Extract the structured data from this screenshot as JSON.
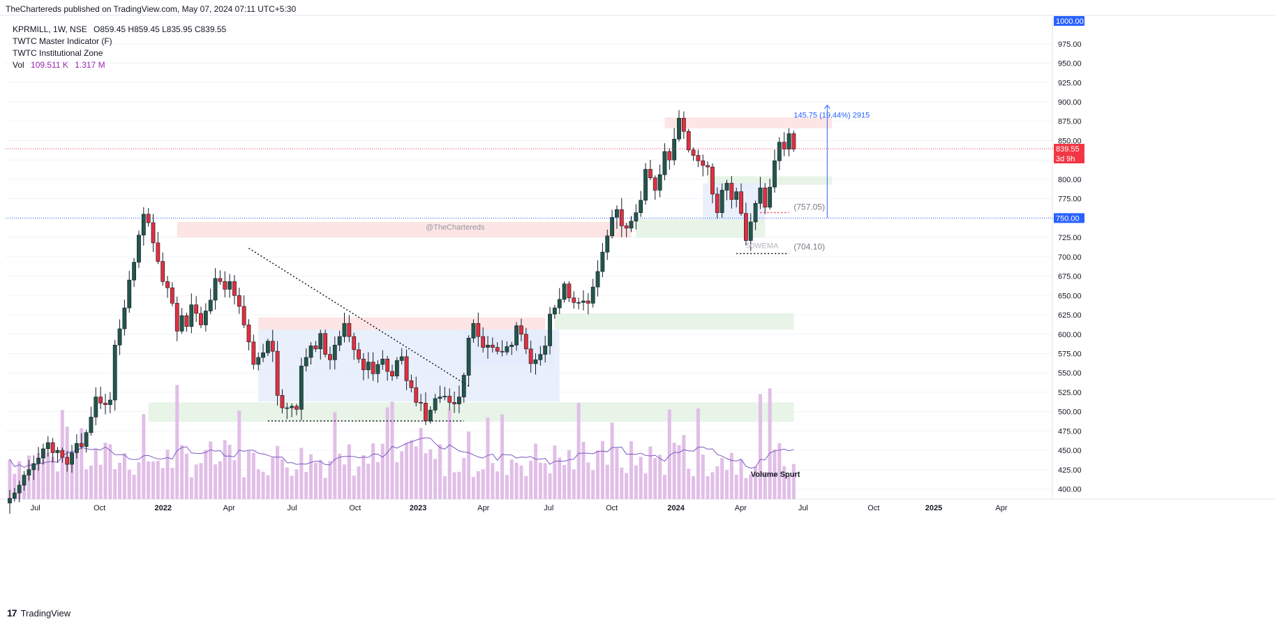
{
  "header": {
    "published": "TheChartereds published on TradingView.com, May 07, 2024 07:11 UTC+5:30"
  },
  "legend": {
    "symbol_line": "KPRMILL, 1W, NSE",
    "ohlc": "O859.45  H859.45  L835.95  C839.55",
    "indicator1": "TWTC Master Indicator (F)",
    "indicator2": "TWTC Institutional Zone",
    "vol_label": "Vol",
    "vol_value1": "109.511 K",
    "vol_value2": "1.317 M"
  },
  "watermark": "@TheChartereds",
  "annotations": {
    "measure": "145.75 (19.44%) 2915",
    "level_757": "(757.05)",
    "level_704": "(704.10)",
    "ema": "50WEMA",
    "volume_spurt": "Volume Spurt"
  },
  "price_badges": {
    "top": "1000.00",
    "current": "839.55",
    "countdown": "3d 9h",
    "line750": "750.00"
  },
  "footer": {
    "brand": "TradingView",
    "logo": "17"
  },
  "colors": {
    "up": "#22574b",
    "down": "#e0303e",
    "volume": "#e1bee7",
    "ma": "#7e57c2",
    "red_zone": "#fde0e0",
    "green_zone": "#e3f2e3",
    "blue_zone": "#e3ecfb",
    "badge_blue": "#2962ff",
    "badge_red": "#f23645"
  },
  "chart_data": {
    "type": "candlestick",
    "symbol": "KPRMILL",
    "interval": "1W",
    "exchange": "NSE",
    "y_axis_ticks": [
      400,
      425,
      450,
      475,
      500,
      525,
      550,
      575,
      600,
      625,
      650,
      675,
      700,
      725,
      750,
      775,
      800,
      825,
      850,
      875,
      900,
      925,
      950,
      975
    ],
    "ylim": [
      387,
      1010
    ],
    "x_tick_labels": [
      "Jul",
      "Oct",
      "2022",
      "Apr",
      "Jul",
      "Oct",
      "2023",
      "Apr",
      "Jul",
      "Oct",
      "2024",
      "Apr",
      "Jul",
      "Oct",
      "2025",
      "Apr"
    ],
    "close_series": [
      388,
      395,
      405,
      418,
      425,
      433,
      440,
      452,
      460,
      447,
      450,
      441,
      432,
      447,
      459,
      455,
      473,
      493,
      519,
      511,
      509,
      515,
      586,
      607,
      634,
      670,
      693,
      728,
      755,
      744,
      718,
      694,
      668,
      660,
      640,
      604,
      624,
      610,
      638,
      627,
      612,
      630,
      644,
      672,
      668,
      658,
      668,
      650,
      636,
      612,
      590,
      561,
      570,
      576,
      591,
      578,
      521,
      505,
      505,
      507,
      503,
      559,
      570,
      585,
      581,
      601,
      574,
      567,
      586,
      597,
      614,
      597,
      580,
      568,
      554,
      564,
      549,
      561,
      568,
      552,
      546,
      566,
      571,
      540,
      531,
      512,
      511,
      488,
      502,
      517,
      519,
      520,
      512,
      510,
      519,
      547,
      595,
      614,
      597,
      583,
      586,
      583,
      578,
      577,
      584,
      586,
      611,
      600,
      581,
      562,
      567,
      574,
      585,
      626,
      634,
      645,
      665,
      647,
      641,
      641,
      643,
      640,
      661,
      681,
      706,
      727,
      751,
      761,
      740,
      737,
      746,
      757,
      773,
      813,
      802,
      786,
      806,
      836,
      825,
      852,
      879,
      862,
      838,
      831,
      824,
      818,
      816,
      781,
      757,
      786,
      795,
      774,
      784,
      756,
      721,
      745,
      769,
      789,
      764,
      790,
      824,
      848,
      839,
      859,
      839
    ],
    "volume_scale_max": "1.317 M",
    "ma_label": "volume MA",
    "zones": [
      {
        "type": "supply",
        "from": 725,
        "to": 745
      },
      {
        "type": "supply",
        "from": 605,
        "to": 622
      },
      {
        "type": "supply",
        "from": 866,
        "to": 880
      },
      {
        "type": "demand",
        "from": 487,
        "to": 512
      },
      {
        "type": "demand",
        "from": 606,
        "to": 627
      },
      {
        "type": "demand",
        "from": 725,
        "to": 749
      },
      {
        "type": "demand",
        "from": 793,
        "to": 804
      }
    ],
    "horizontal_lines": [
      839.55,
      750
    ],
    "levels": [
      757.05,
      704.1
    ],
    "measure": {
      "from": 750,
      "to": 895.75,
      "change": 145.75,
      "percent": 19.44,
      "bars": 2915
    }
  }
}
